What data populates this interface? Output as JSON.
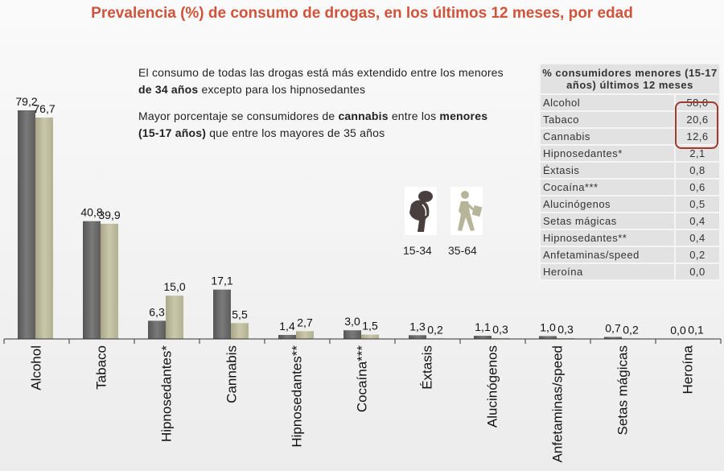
{
  "title": "Prevalencia (%) de consumo de drogas, en los últimos 12 meses, por edad",
  "notes": [
    {
      "pre": "El consumo de todas las drogas está más extendido entre los menores ",
      "bold": "de 34 años",
      "post": " excepto para los hipnosedantes"
    },
    {
      "pre": "Mayor porcentaje se consumidores de ",
      "bold": "cannabis",
      "mid": " entre los ",
      "bold2": "menores (15-17 años)",
      "post": " que entre los mayores de 35 años"
    }
  ],
  "legend": [
    {
      "label": "15-34",
      "icon": "backpack-person-icon",
      "color": "#4a3f3f"
    },
    {
      "label": "35-64",
      "icon": "walking-person-briefcase-icon",
      "color": "#b7b599"
    }
  ],
  "chart_data": {
    "type": "bar",
    "categories": [
      "Alcohol",
      "Tabaco",
      "Hipnosedantes*",
      "Cannabis",
      "Hipnosedantes**",
      "Cocaína***",
      "Éxtasis",
      "Alucinógenos",
      "Anfetaminas/speed",
      "Setas mágicas",
      "Heroína"
    ],
    "series": [
      {
        "name": "15-34",
        "color": "#6b6b6b",
        "values": [
          79.2,
          40.8,
          6.3,
          17.1,
          1.4,
          3.0,
          1.3,
          1.1,
          1.0,
          0.7,
          0.0
        ],
        "labels": [
          "79,2",
          "40,8",
          "6,3",
          "17,1",
          "1,4",
          "3,0",
          "1,3",
          "1,1",
          "1,0",
          "0,7",
          "0,0"
        ]
      },
      {
        "name": "35-64",
        "color": "#bdbb9c",
        "values": [
          76.7,
          39.9,
          15.0,
          5.5,
          2.7,
          1.5,
          0.2,
          0.3,
          0.3,
          0.2,
          0.1
        ],
        "labels": [
          "76,7",
          "39,9",
          "15,0",
          "5,5",
          "2,7",
          "1,5",
          "0,2",
          "0,3",
          "0,3",
          "0,2",
          "0,1"
        ]
      }
    ],
    "ylim": [
      0,
      80
    ],
    "grid": false
  },
  "table": {
    "header": "% consumidores menores (15-17 años) últimos 12 meses",
    "rows": [
      [
        "Alcohol",
        "58,0"
      ],
      [
        "Tabaco",
        "20,6"
      ],
      [
        "Cannabis",
        "12,6"
      ],
      [
        "Hipnosedantes*",
        "2,1"
      ],
      [
        "Éxtasis",
        "0,8"
      ],
      [
        "Cocaína***",
        "0,6"
      ],
      [
        "Alucinógenos",
        "0,5"
      ],
      [
        "Setas mágicas",
        "0,4"
      ],
      [
        "Hipnosedantes**",
        "0,4"
      ],
      [
        "Anfetaminas/speed",
        "0,2"
      ],
      [
        "Heroína",
        "0,0"
      ]
    ],
    "highlight_color": "#9e3b2f"
  }
}
